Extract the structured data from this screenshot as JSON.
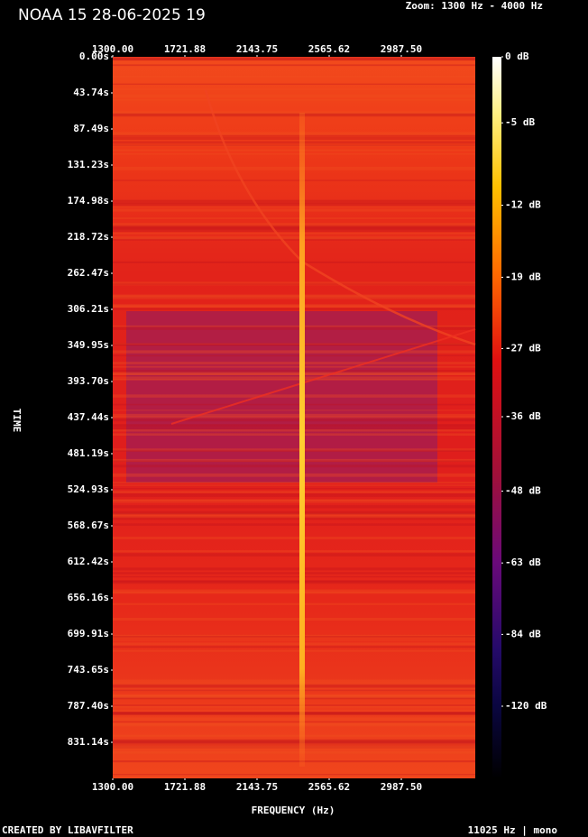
{
  "header": {
    "title": "NOAA 15 28-06-2025 19",
    "zoom": "Zoom: 1300 Hz - 4000 Hz"
  },
  "chart_data": {
    "type": "spectrogram",
    "xlabel": "FREQUENCY (Hz)",
    "ylabel": "TIME",
    "xlim": [
      1300,
      3420
    ],
    "xticks": [
      {
        "value": 1300,
        "label": "1300.00"
      },
      1721.88,
      2143.75,
      2565.62,
      {
        "value": 2987.5,
        "label": "2987.50"
      }
    ],
    "ylim": [
      0,
      874.88
    ],
    "yticks": [
      {
        "value": 0,
        "label": "0.00s"
      },
      {
        "value": 43.74,
        "label": "43.74s"
      },
      {
        "value": 87.49,
        "label": "87.49s"
      },
      {
        "value": 131.23,
        "label": "131.23s"
      },
      {
        "value": 174.98,
        "label": "174.98s"
      },
      {
        "value": 218.72,
        "label": "218.72s"
      },
      {
        "value": 262.47,
        "label": "262.47s"
      },
      {
        "value": 306.21,
        "label": "306.21s"
      },
      {
        "value": 349.95,
        "label": "349.95s"
      },
      {
        "value": 393.7,
        "label": "393.70s"
      },
      {
        "value": 437.44,
        "label": "437.44s"
      },
      {
        "value": 481.19,
        "label": "481.19s"
      },
      {
        "value": 524.93,
        "label": "524.93s"
      },
      {
        "value": 568.67,
        "label": "568.67s"
      },
      {
        "value": 612.42,
        "label": "612.42s"
      },
      {
        "value": 656.16,
        "label": "656.16s"
      },
      {
        "value": 699.91,
        "label": "699.91s"
      },
      {
        "value": 743.65,
        "label": "743.65s"
      },
      {
        "value": 787.4,
        "label": "787.40s"
      },
      {
        "value": 831.14,
        "label": "831.14s"
      }
    ],
    "colorbar_ticks": [
      {
        "value": 0,
        "label": "0 dB"
      },
      {
        "value": -5,
        "label": "-5 dB"
      },
      {
        "value": -12,
        "label": "-12 dB"
      },
      {
        "value": -19,
        "label": "-19 dB"
      },
      {
        "value": -27,
        "label": "-27 dB"
      },
      {
        "value": -36,
        "label": "-36 dB"
      },
      {
        "value": -48,
        "label": "-48 dB"
      },
      {
        "value": -63,
        "label": "-63 dB"
      },
      {
        "value": -84,
        "label": "-84 dB"
      },
      {
        "value": -120,
        "label": "-120 dB"
      }
    ]
  },
  "footer": {
    "left": "CREATED BY LIBAVFILTER",
    "right": "11025 Hz | mono"
  }
}
